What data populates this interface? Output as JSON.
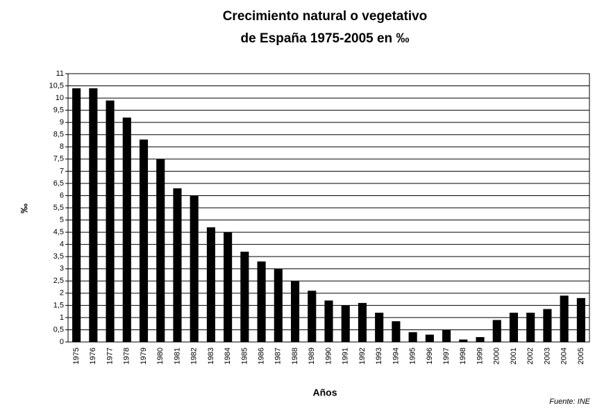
{
  "chart_data": {
    "type": "bar",
    "title": [
      "Crecimiento natural o vegetativo",
      "de España 1975-2005 en ‰"
    ],
    "y_label": "‰",
    "x_label": "Años",
    "source": "Fuente: INE",
    "categories": [
      "1975",
      "1976",
      "1977",
      "1978",
      "1979",
      "1980",
      "1981",
      "1982",
      "1983",
      "1984",
      "1985",
      "1986",
      "1987",
      "1988",
      "1989",
      "1990",
      "1991",
      "1992",
      "1993",
      "1994",
      "1995",
      "1996",
      "1997",
      "1998",
      "1999",
      "2000",
      "2001",
      "2002",
      "2003",
      "2004",
      "2005"
    ],
    "values": [
      10.4,
      10.4,
      9.9,
      9.2,
      8.3,
      7.5,
      6.3,
      6.0,
      4.7,
      4.5,
      3.7,
      3.3,
      3.0,
      2.5,
      2.1,
      1.7,
      1.5,
      1.6,
      1.2,
      0.85,
      0.4,
      0.3,
      0.5,
      0.1,
      0.2,
      0.9,
      1.2,
      1.2,
      1.35,
      1.9,
      1.8
    ],
    "color": "#000000",
    "ylim": [
      0,
      11
    ],
    "yticks": [
      0,
      {
        "value": 0.5,
        "label": "0,5"
      },
      1,
      {
        "value": 1.5,
        "label": "1,5"
      },
      2,
      {
        "value": 2.5,
        "label": "2,5"
      },
      3,
      {
        "value": 3.5,
        "label": "3,5"
      },
      4,
      {
        "value": 4.5,
        "label": "4,5"
      },
      5,
      {
        "value": 5.5,
        "label": "5,5"
      },
      6,
      {
        "value": 6.5,
        "label": "6,5"
      },
      7,
      {
        "value": 7.5,
        "label": "7,5"
      },
      8,
      {
        "value": 8.5,
        "label": "8,5"
      },
      9,
      {
        "value": 9.5,
        "label": "9,5"
      },
      10,
      {
        "value": 10.5,
        "label": "10,5"
      },
      11
    ],
    "grid": true
  }
}
